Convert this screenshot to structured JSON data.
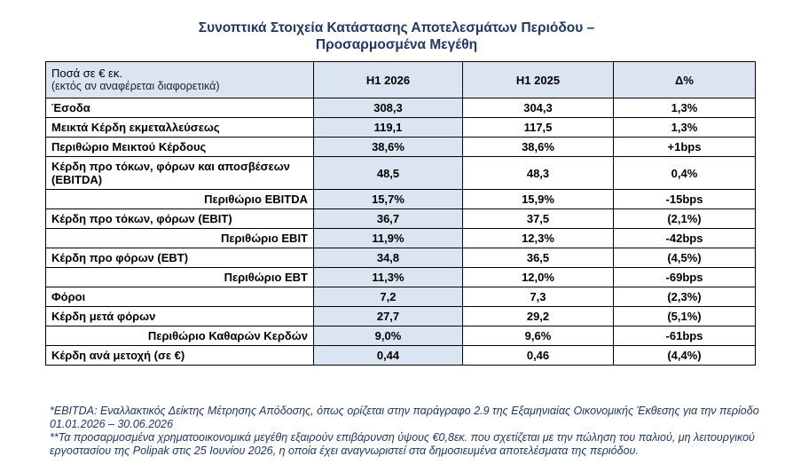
{
  "title": {
    "line1": "Συνοπτικά Στοιχεία Κατάστασης Αποτελεσμάτων Περιόδου –",
    "line2": "Προσαρμοσμένα Μεγέθη"
  },
  "table": {
    "header": {
      "label_main": "Ποσά σε € εκ.",
      "label_sub": "(εκτός αν αναφέρεται διαφορετικά)",
      "col1": "H1 2026",
      "col2": "H1 2025",
      "col3": "Δ%"
    },
    "rows": [
      {
        "label": "Έσοδα",
        "h1_2026": "308,3",
        "h1_2025": "304,3",
        "delta": "1,3%"
      },
      {
        "label": "Μεικτά Κέρδη εκμεταλλεύσεως",
        "h1_2026": "119,1",
        "h1_2025": "117,5",
        "delta": "1,3%"
      },
      {
        "label": "Περιθώριο Μεικτού Κέρδους",
        "h1_2026": "38,6%",
        "h1_2025": "38,6%",
        "delta": "+1bps"
      },
      {
        "label": "Κέρδη προ τόκων, φόρων και αποσβέσεων (EBITDA)",
        "h1_2026": "48,5",
        "h1_2025": "48,3",
        "delta": "0,4%"
      },
      {
        "label": "Περιθώριο EBITDA",
        "h1_2026": "15,7%",
        "h1_2025": "15,9%",
        "delta": "-15bps"
      },
      {
        "label": "Κέρδη προ τόκων, φόρων (EBIT)",
        "h1_2026": "36,7",
        "h1_2025": "37,5",
        "delta": "(2,1%)"
      },
      {
        "label": "Περιθώριο EBIT",
        "h1_2026": "11,9%",
        "h1_2025": "12,3%",
        "delta": "-42bps"
      },
      {
        "label": "Κέρδη προ φόρων (EBT)",
        "h1_2026": "34,8",
        "h1_2025": "36,5",
        "delta": "(4,5%)"
      },
      {
        "label": "Περιθώριο EBT",
        "h1_2026": "11,3%",
        "h1_2025": "12,0%",
        "delta": "-69bps"
      },
      {
        "label": "Φόροι",
        "h1_2026": "7,2",
        "h1_2025": "7,3",
        "delta": "(2,3%)"
      },
      {
        "label": "Κέρδη μετά φόρων",
        "h1_2026": "27,7",
        "h1_2025": "29,2",
        "delta": "(5,1%)"
      },
      {
        "label": "Περιθώριο Καθαρών Κερδών",
        "h1_2026": "9,0%",
        "h1_2025": "9,6%",
        "delta": "-61bps"
      },
      {
        "label": "Κέρδη ανά μετοχή (σε €)",
        "h1_2026": "0,44",
        "h1_2025": "0,46",
        "delta": "(4,4%)"
      }
    ]
  },
  "notes": {
    "note1": "*EBITDA: Εναλλακτικός Δείκτης Μέτρησης Απόδοσης, όπως ορίζεται στην παράγραφο 2.9 της Εξαμηνιαίας Οικονομικής Έκθεσης για την περίοδο 01.01.2026 – 30.06.2026",
    "note2": "**Τα προσαρμοσμένα χρηματοοικονομικά μεγέθη εξαιρούν επιβάρυνση ύψους €0,8εκ. που σχετίζεται με την πώληση του παλιού, μη λειτουργικού εργοστασίου της Polipak στις 25 Ιουνίου 2026, η οποία έχει αναγνωριστεί στα δημοσιευμένα αποτελέσματα της περιόδου."
  }
}
